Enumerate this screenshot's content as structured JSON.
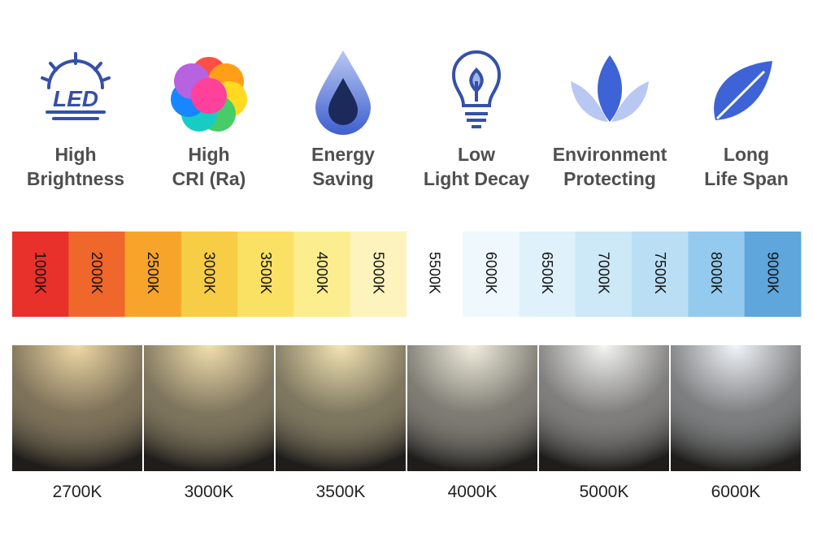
{
  "features": [
    {
      "icon_text": "LED",
      "lines": [
        "High",
        "Brightness"
      ]
    },
    {
      "lines": [
        "High",
        "CRI (Ra)"
      ]
    },
    {
      "lines": [
        "Energy",
        "Saving"
      ]
    },
    {
      "lines": [
        "Low",
        "Light Decay"
      ]
    },
    {
      "lines": [
        "Environment",
        "Protecting"
      ]
    },
    {
      "lines": [
        "Long",
        "Life Span"
      ]
    }
  ],
  "temperature_scale": [
    {
      "label": "1000K",
      "color": "#e8312a"
    },
    {
      "label": "2000K",
      "color": "#f0672b"
    },
    {
      "label": "2500K",
      "color": "#f7a42a"
    },
    {
      "label": "3000K",
      "color": "#f8cd46"
    },
    {
      "label": "3500K",
      "color": "#fbe163"
    },
    {
      "label": "4000K",
      "color": "#fcee8e"
    },
    {
      "label": "5000K",
      "color": "#fdf3bd"
    },
    {
      "label": "5500K",
      "color": "#ffffff"
    },
    {
      "label": "6000K",
      "color": "#eef8fd"
    },
    {
      "label": "6500K",
      "color": "#dff1fa"
    },
    {
      "label": "7000K",
      "color": "#cde8f7"
    },
    {
      "label": "7500K",
      "color": "#badff4"
    },
    {
      "label": "8000K",
      "color": "#94caed"
    },
    {
      "label": "9000K",
      "color": "#5ea6dc"
    }
  ],
  "light_samples": [
    {
      "label": "2700K",
      "color": "#f1d9a6"
    },
    {
      "label": "3000K",
      "color": "#f3e0ae"
    },
    {
      "label": "3500K",
      "color": "#f4e5b4"
    },
    {
      "label": "4000K",
      "color": "#f3efdf"
    },
    {
      "label": "5000K",
      "color": "#f5f5f3"
    },
    {
      "label": "6000K",
      "color": "#f1f5fa"
    }
  ]
}
